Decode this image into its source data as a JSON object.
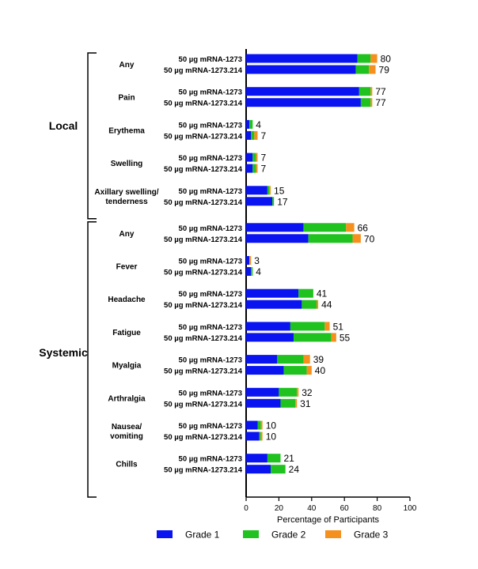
{
  "chart_data": {
    "type": "bar",
    "orientation": "horizontal",
    "stacked": true,
    "xlabel": "Percentage of Participants",
    "xlim": [
      0,
      100
    ],
    "xticks": [
      "0",
      "20",
      "40",
      "60",
      "80",
      "100"
    ],
    "colors": {
      "Grade 1": "#0a14f0",
      "Grade 2": "#1fc21f",
      "Grade 3": "#f5901e"
    },
    "legend_position": "bottom",
    "series": [
      {
        "name": "Grade 1"
      },
      {
        "name": "Grade 2"
      },
      {
        "name": "Grade 3"
      }
    ],
    "sections": [
      {
        "name": "Local",
        "groups": [
          {
            "label": "Any",
            "rows": [
              {
                "label": "50 µg mRNA-1273",
                "values": [
                  68,
                  8,
                  4
                ],
                "total": "80"
              },
              {
                "label": "50 µg mRNA-1273.214",
                "values": [
                  67,
                  8,
                  4
                ],
                "total": "79"
              }
            ]
          },
          {
            "label": "Pain",
            "rows": [
              {
                "label": "50 µg mRNA-1273",
                "values": [
                  69,
                  7,
                  1
                ],
                "total": "77"
              },
              {
                "label": "50 µg mRNA-1273.214",
                "values": [
                  70,
                  6,
                  1
                ],
                "total": "77"
              }
            ]
          },
          {
            "label": "Erythema",
            "rows": [
              {
                "label": "50 µg mRNA-1273",
                "values": [
                  2,
                  2,
                  0
                ],
                "total": "4"
              },
              {
                "label": "50 µg mRNA-1273.214",
                "values": [
                  3,
                  2,
                  2
                ],
                "total": "7"
              }
            ]
          },
          {
            "label": "Swelling",
            "rows": [
              {
                "label": "50 µg mRNA-1273",
                "values": [
                  4,
                  2,
                  1
                ],
                "total": "7"
              },
              {
                "label": "50 µg mRNA-1273.214",
                "values": [
                  4,
                  2,
                  1
                ],
                "total": "7"
              }
            ]
          },
          {
            "label": "Axillary swelling/ tenderness",
            "rows": [
              {
                "label": "50 µg mRNA-1273",
                "values": [
                  13,
                  1,
                  1
                ],
                "total": "15"
              },
              {
                "label": "50 µg mRNA-1273.214",
                "values": [
                  16,
                  1,
                  0
                ],
                "total": "17"
              }
            ]
          }
        ]
      },
      {
        "name": "Systemic",
        "groups": [
          {
            "label": "Any",
            "rows": [
              {
                "label": "50 µg mRNA-1273",
                "values": [
                  35,
                  26,
                  5
                ],
                "total": "66"
              },
              {
                "label": "50 µg mRNA-1273.214",
                "values": [
                  38,
                  27,
                  5
                ],
                "total": "70"
              }
            ]
          },
          {
            "label": "Fever",
            "rows": [
              {
                "label": "50 µg mRNA-1273",
                "values": [
                  2,
                  0,
                  1
                ],
                "total": "3"
              },
              {
                "label": "50 µg mRNA-1273.214",
                "values": [
                  3,
                  1,
                  0
                ],
                "total": "4"
              }
            ]
          },
          {
            "label": "Headache",
            "rows": [
              {
                "label": "50 µg mRNA-1273",
                "values": [
                  32,
                  9,
                  0
                ],
                "total": "41"
              },
              {
                "label": "50 µg mRNA-1273.214",
                "values": [
                  34,
                  9,
                  1
                ],
                "total": "44"
              }
            ]
          },
          {
            "label": "Fatigue",
            "rows": [
              {
                "label": "50 µg mRNA-1273",
                "values": [
                  27,
                  21,
                  3
                ],
                "total": "51"
              },
              {
                "label": "50 µg mRNA-1273.214",
                "values": [
                  29,
                  23,
                  3
                ],
                "total": "55"
              }
            ]
          },
          {
            "label": "Myalgia",
            "rows": [
              {
                "label": "50 µg mRNA-1273",
                "values": [
                  19,
                  16,
                  4
                ],
                "total": "39"
              },
              {
                "label": "50 µg mRNA-1273.214",
                "values": [
                  23,
                  14,
                  3
                ],
                "total": "40"
              }
            ]
          },
          {
            "label": "Arthralgia",
            "rows": [
              {
                "label": "50 µg mRNA-1273",
                "values": [
                  20,
                  11,
                  1
                ],
                "total": "32"
              },
              {
                "label": "50 µg mRNA-1273.214",
                "values": [
                  21,
                  9,
                  1
                ],
                "total": "31"
              }
            ]
          },
          {
            "label": "Nausea/ vomiting",
            "rows": [
              {
                "label": "50 µg mRNA-1273",
                "values": [
                  7,
                  2,
                  1
                ],
                "total": "10"
              },
              {
                "label": "50 µg mRNA-1273.214",
                "values": [
                  8,
                  1,
                  1
                ],
                "total": "10"
              }
            ]
          },
          {
            "label": "Chills",
            "rows": [
              {
                "label": "50 µg mRNA-1273",
                "values": [
                  13,
                  8,
                  0
                ],
                "total": "21"
              },
              {
                "label": "50 µg mRNA-1273.214",
                "values": [
                  15,
                  9,
                  0
                ],
                "total": "24"
              }
            ]
          }
        ]
      }
    ]
  }
}
